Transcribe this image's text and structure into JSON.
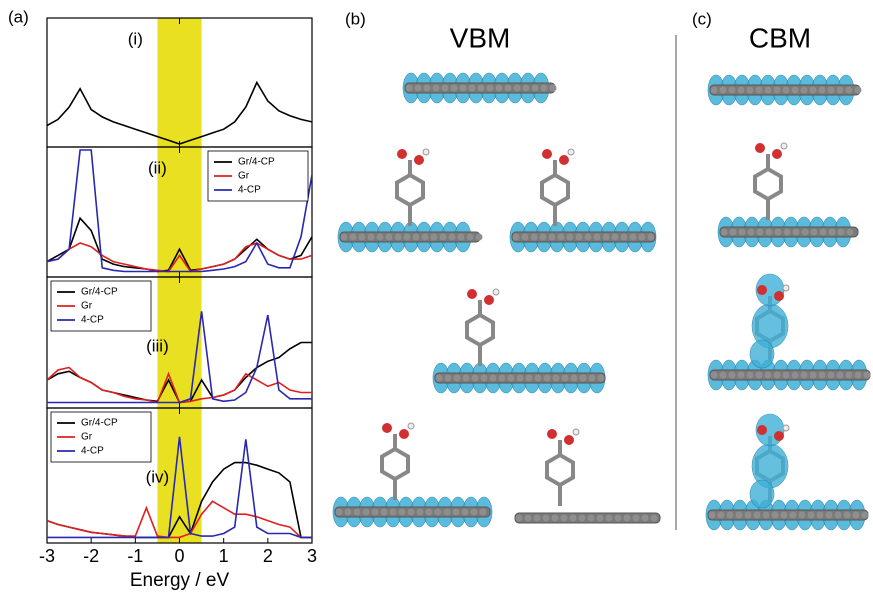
{
  "figure": {
    "panel_a": "(a)",
    "panel_b": "(b)",
    "panel_c": "(c)",
    "vbm": "VBM",
    "cbm": "CBM"
  },
  "chart_data": [
    {
      "type": "line",
      "title": "(i)",
      "xlim": [
        -3,
        3
      ],
      "ylim": [
        0,
        1
      ],
      "span": [
        -0.5,
        0.5
      ],
      "span_color": "#e8e020",
      "x": [
        -3,
        -2.75,
        -2.5,
        -2.25,
        -2,
        -1.75,
        -1.5,
        -1.25,
        -1,
        -0.75,
        -0.5,
        -0.25,
        0,
        0.25,
        0.5,
        0.75,
        1,
        1.25,
        1.5,
        1.75,
        2,
        2.25,
        2.5,
        2.75,
        3
      ],
      "color": "#000000",
      "values": [
        0.15,
        0.2,
        0.3,
        0.45,
        0.28,
        0.22,
        0.18,
        0.15,
        0.12,
        0.09,
        0.06,
        0.03,
        0,
        0.03,
        0.06,
        0.09,
        0.12,
        0.18,
        0.3,
        0.5,
        0.35,
        0.27,
        0.23,
        0.2,
        0.18
      ]
    },
    {
      "type": "line",
      "title": "(ii)",
      "xlim": [
        -3,
        3
      ],
      "ylim": [
        0,
        1
      ],
      "span": [
        -0.5,
        0.5
      ],
      "span_color": "#e8e020",
      "legend": "upper right",
      "x": [
        -3,
        -2.75,
        -2.5,
        -2.25,
        -2,
        -1.75,
        -1.5,
        -1.25,
        -1,
        -0.75,
        -0.5,
        -0.25,
        0,
        0.25,
        0.5,
        0.75,
        1,
        1.25,
        1.5,
        1.75,
        2,
        2.25,
        2.5,
        2.75,
        3
      ],
      "series": [
        {
          "name": "Gr/4-CP",
          "color": "#000000",
          "values": [
            0.1,
            0.15,
            0.2,
            0.45,
            0.35,
            0.12,
            0.08,
            0.06,
            0.05,
            0.04,
            0.02,
            0.03,
            0.2,
            0.03,
            0.04,
            0.06,
            0.08,
            0.12,
            0.2,
            0.28,
            0.2,
            0.15,
            0.12,
            0.15,
            0.3
          ]
        },
        {
          "name": "Gr",
          "color": "#e02020",
          "values": [
            0.1,
            0.12,
            0.2,
            0.25,
            0.22,
            0.15,
            0.1,
            0.08,
            0.06,
            0.04,
            0.03,
            0.02,
            0.15,
            0.02,
            0.04,
            0.06,
            0.08,
            0.12,
            0.22,
            0.25,
            0.2,
            0.15,
            0.12,
            0.12,
            0.15
          ]
        },
        {
          "name": "4-CP",
          "color": "#2828b0",
          "values": [
            0.1,
            0.12,
            0.2,
            1,
            1,
            0.05,
            0.03,
            0.02,
            0.02,
            0.02,
            0.02,
            0.02,
            0.02,
            0.02,
            0.02,
            0.03,
            0.04,
            0.06,
            0.1,
            0.25,
            0.08,
            0.05,
            0.05,
            0.3,
            0.8
          ]
        }
      ]
    },
    {
      "type": "line",
      "title": "(iii)",
      "xlim": [
        -3,
        3
      ],
      "ylim": [
        0,
        1
      ],
      "span": [
        -0.5,
        0.5
      ],
      "span_color": "#e8e020",
      "legend": "upper left",
      "x": [
        -3,
        -2.75,
        -2.5,
        -2.25,
        -2,
        -1.75,
        -1.5,
        -1.25,
        -1,
        -0.75,
        -0.5,
        -0.25,
        0,
        0.25,
        0.5,
        0.75,
        1,
        1.25,
        1.5,
        1.75,
        2,
        2.25,
        2.5,
        2.75,
        3
      ],
      "series": [
        {
          "name": "Gr/4-CP",
          "color": "#000000",
          "values": [
            0.2,
            0.25,
            0.27,
            0.22,
            0.18,
            0.12,
            0.1,
            0.08,
            0.06,
            0.04,
            0.03,
            0.2,
            0.02,
            0.03,
            0.2,
            0.06,
            0.08,
            0.12,
            0.22,
            0.3,
            0.35,
            0.38,
            0.45,
            0.5,
            0.5
          ]
        },
        {
          "name": "Gr",
          "color": "#e02020",
          "values": [
            0.2,
            0.28,
            0.3,
            0.22,
            0.18,
            0.12,
            0.1,
            0.07,
            0.05,
            0.04,
            0.02,
            0.25,
            0.02,
            0.03,
            0.05,
            0.06,
            0.08,
            0.12,
            0.25,
            0.2,
            0.15,
            0.18,
            0.12,
            0.1,
            0.1
          ]
        },
        {
          "name": "4-CP",
          "color": "#2828b0",
          "values": [
            0.02,
            0.02,
            0.02,
            0.02,
            0.02,
            0.02,
            0.02,
            0.02,
            0.02,
            0.02,
            0.02,
            0.02,
            0.02,
            0.05,
            0.75,
            0.05,
            0.03,
            0.04,
            0.1,
            0.3,
            0.72,
            0.12,
            0.05,
            0.05,
            0.05
          ]
        }
      ]
    },
    {
      "type": "line",
      "title": "(iv)",
      "xlim": [
        -3,
        3
      ],
      "ylim": [
        0,
        1
      ],
      "span": [
        -0.5,
        0.5
      ],
      "span_color": "#e8e020",
      "legend": "upper left",
      "xticks": [
        -3,
        -2,
        -1,
        0,
        1,
        2,
        3
      ],
      "xlabel": "Energy / eV",
      "x": [
        -3,
        -2.75,
        -2.5,
        -2.25,
        -2,
        -1.75,
        -1.5,
        -1.25,
        -1,
        -0.75,
        -0.5,
        -0.25,
        0,
        0.25,
        0.5,
        0.75,
        1,
        1.25,
        1.5,
        1.75,
        2,
        2.25,
        2.5,
        2.75,
        3
      ],
      "series": [
        {
          "name": "Gr/4-CP",
          "color": "#000000",
          "values": [
            0.15,
            0.12,
            0.1,
            0.08,
            0.06,
            0.05,
            0.04,
            0.03,
            0.02,
            0.02,
            0.02,
            0.02,
            0.18,
            0.05,
            0.3,
            0.45,
            0.55,
            0.6,
            0.6,
            0.58,
            0.55,
            0.52,
            0.45,
            0.02,
            0.02
          ]
        },
        {
          "name": "Gr",
          "color": "#e02020",
          "values": [
            0.15,
            0.12,
            0.1,
            0.08,
            0.06,
            0.05,
            0.04,
            0.03,
            0.03,
            0.25,
            0.03,
            0.02,
            0.02,
            0.05,
            0.2,
            0.3,
            0.25,
            0.2,
            0.2,
            0.18,
            0.15,
            0.12,
            0.1,
            0.02,
            0.02
          ]
        },
        {
          "name": "4-CP",
          "color": "#2828b0",
          "values": [
            0.02,
            0.02,
            0.02,
            0.02,
            0.02,
            0.02,
            0.02,
            0.02,
            0.02,
            0.02,
            0.02,
            0.02,
            0.8,
            0.05,
            0.03,
            0.03,
            0.05,
            0.1,
            0.78,
            0.1,
            0.05,
            0.05,
            0.05,
            0.02,
            0.02
          ]
        }
      ]
    }
  ]
}
